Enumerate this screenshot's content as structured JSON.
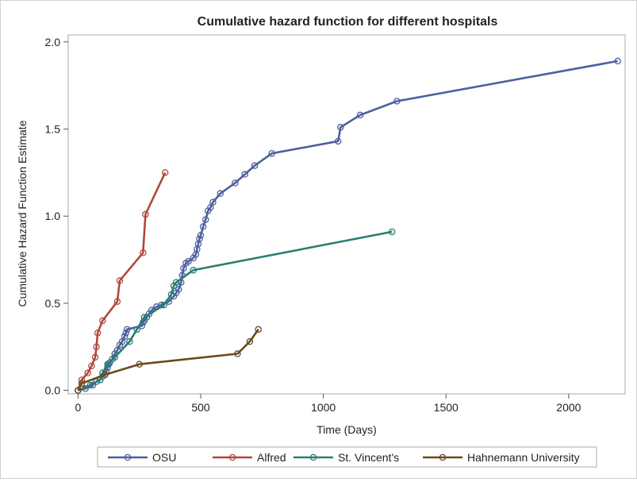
{
  "chart_data": {
    "type": "line",
    "title": "Cumulative hazard function for different hospitals",
    "xlabel": "Time (Days)",
    "ylabel": "Cumulative Hazard Function Estimate",
    "xlim": [
      -40,
      2230
    ],
    "ylim": [
      -0.02,
      2.04
    ],
    "x_ticks": [
      0,
      500,
      1000,
      1500,
      2000
    ],
    "y_ticks": [
      0.0,
      0.5,
      1.0,
      1.5,
      2.0
    ],
    "x_tick_labels": [
      "0",
      "500",
      "1000",
      "1500",
      "2000"
    ],
    "y_tick_labels": [
      "0.0",
      "0.5",
      "1.0",
      "1.5",
      "2.0"
    ],
    "grid": false,
    "legend_position": "bottom",
    "series": [
      {
        "name": "OSU",
        "color": "#4f5fa0",
        "x": [
          0,
          30,
          60,
          75,
          90,
          100,
          110,
          115,
          120,
          125,
          130,
          140,
          150,
          160,
          170,
          180,
          190,
          195,
          200,
          260,
          265,
          270,
          280,
          290,
          300,
          320,
          340,
          370,
          390,
          400,
          410,
          420,
          425,
          430,
          440,
          450,
          470,
          480,
          485,
          490,
          495,
          500,
          510,
          520,
          530,
          540,
          550,
          580,
          640,
          680,
          720,
          790,
          1060,
          1070,
          1150,
          1300,
          2200
        ],
        "y": [
          0.0,
          0.01,
          0.03,
          0.05,
          0.06,
          0.08,
          0.09,
          0.11,
          0.13,
          0.15,
          0.16,
          0.18,
          0.21,
          0.23,
          0.26,
          0.28,
          0.31,
          0.33,
          0.35,
          0.37,
          0.39,
          0.4,
          0.42,
          0.44,
          0.46,
          0.48,
          0.49,
          0.51,
          0.54,
          0.56,
          0.58,
          0.62,
          0.66,
          0.7,
          0.73,
          0.74,
          0.76,
          0.78,
          0.81,
          0.84,
          0.87,
          0.89,
          0.94,
          0.98,
          1.03,
          1.05,
          1.08,
          1.13,
          1.19,
          1.24,
          1.29,
          1.36,
          1.43,
          1.51,
          1.58,
          1.66,
          1.89
        ]
      },
      {
        "name": "Alfred",
        "color": "#b0483c",
        "x": [
          0,
          15,
          40,
          55,
          70,
          75,
          80,
          100,
          160,
          170,
          265,
          275,
          355
        ],
        "y": [
          0.0,
          0.06,
          0.1,
          0.14,
          0.19,
          0.25,
          0.33,
          0.4,
          0.51,
          0.63,
          0.79,
          1.01,
          1.25
        ]
      },
      {
        "name": "St. Vincent's",
        "color": "#2a7f72",
        "x": [
          0,
          50,
          90,
          100,
          120,
          150,
          210,
          240,
          270,
          350,
          380,
          390,
          400,
          470,
          1280
        ],
        "y": [
          0.0,
          0.03,
          0.06,
          0.1,
          0.15,
          0.19,
          0.28,
          0.35,
          0.42,
          0.49,
          0.55,
          0.6,
          0.62,
          0.69,
          0.91
        ]
      },
      {
        "name": "Hahnemann University",
        "color": "#6b4a1e",
        "x": [
          0,
          15,
          110,
          250,
          650,
          700,
          735
        ],
        "y": [
          0.0,
          0.04,
          0.09,
          0.15,
          0.21,
          0.28,
          0.35
        ]
      }
    ]
  }
}
